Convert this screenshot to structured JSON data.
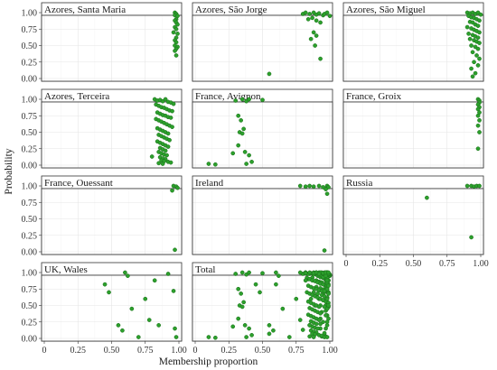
{
  "chart_data": {
    "type": "scatter",
    "xlabel": "Membership proportion",
    "ylabel": "Probability",
    "xlim": [
      0,
      1
    ],
    "ylim": [
      0,
      1
    ],
    "x_ticks": [
      "0",
      "0.25",
      "0.50",
      "0.75",
      "1.00"
    ],
    "y_ticks": [
      "0.00",
      "0.25",
      "0.50",
      "0.75",
      "1.00"
    ],
    "grid": true,
    "point_color": "#2ca02c",
    "point_edge_color": "#1a6b1a",
    "panels": [
      {
        "title": "Azores, Santa Maria",
        "x": [
          0.97,
          0.98,
          0.97,
          0.99,
          0.98,
          0.97,
          0.98,
          0.99,
          0.97,
          0.98,
          0.96,
          0.99,
          0.98,
          0.97,
          0.98,
          0.97,
          0.99,
          0.98,
          0.97,
          0.98
        ],
        "y": [
          1.0,
          0.98,
          0.96,
          0.95,
          0.9,
          0.88,
          0.85,
          0.82,
          0.78,
          0.75,
          0.7,
          0.68,
          0.62,
          0.58,
          0.55,
          0.5,
          0.48,
          0.45,
          0.42,
          0.35
        ]
      },
      {
        "title": "Azores, São Jorge",
        "x": [
          0.8,
          0.82,
          0.85,
          0.88,
          0.9,
          0.92,
          0.95,
          0.96,
          0.98,
          1.0,
          0.84,
          0.87,
          0.9,
          0.93,
          0.88,
          0.9,
          0.86,
          0.89,
          0.93,
          0.55
        ],
        "y": [
          0.98,
          1.0,
          0.98,
          1.0,
          0.97,
          0.99,
          0.96,
          0.98,
          1.0,
          0.95,
          0.9,
          0.92,
          0.88,
          0.85,
          0.7,
          0.65,
          0.6,
          0.5,
          0.3,
          0.07
        ]
      },
      {
        "title": "Azores, São Miguel",
        "x": [
          0.9,
          0.92,
          0.94,
          0.96,
          0.98,
          1.0,
          0.91,
          0.93,
          0.95,
          0.97,
          0.99,
          0.92,
          0.94,
          0.96,
          0.98,
          0.9,
          0.93,
          0.95,
          0.97,
          0.99,
          0.91,
          0.94,
          0.96,
          0.98,
          0.92,
          0.95,
          0.97,
          0.99,
          0.93,
          0.96,
          0.98,
          0.94,
          0.97,
          0.99,
          0.95,
          0.98,
          0.93,
          0.96,
          0.94
        ],
        "y": [
          1.0,
          0.99,
          1.0,
          0.98,
          1.0,
          0.97,
          0.95,
          0.93,
          0.92,
          0.9,
          0.88,
          0.86,
          0.85,
          0.82,
          0.8,
          0.78,
          0.76,
          0.74,
          0.72,
          0.7,
          0.68,
          0.66,
          0.64,
          0.62,
          0.6,
          0.58,
          0.56,
          0.54,
          0.5,
          0.48,
          0.45,
          0.4,
          0.35,
          0.3,
          0.25,
          0.2,
          0.15,
          0.08,
          0.03
        ]
      },
      {
        "title": "Azores, Terceira",
        "x": [
          0.82,
          0.84,
          0.86,
          0.88,
          0.9,
          0.92,
          0.94,
          0.96,
          0.83,
          0.85,
          0.87,
          0.89,
          0.91,
          0.93,
          0.95,
          0.84,
          0.86,
          0.88,
          0.9,
          0.92,
          0.94,
          0.83,
          0.85,
          0.87,
          0.89,
          0.91,
          0.93,
          0.95,
          0.84,
          0.86,
          0.88,
          0.9,
          0.92,
          0.85,
          0.87,
          0.89,
          0.91,
          0.93,
          0.84,
          0.86,
          0.88,
          0.9,
          0.92,
          0.86,
          0.88,
          0.9,
          0.85,
          0.87,
          0.89,
          0.91,
          0.8,
          0.86,
          0.88,
          0.9,
          0.87,
          0.89,
          0.92,
          0.94,
          0.85,
          0.88
        ],
        "y": [
          1.0,
          0.98,
          0.99,
          0.97,
          1.0,
          0.96,
          0.95,
          0.93,
          0.92,
          0.9,
          0.88,
          0.87,
          0.85,
          0.83,
          0.82,
          0.8,
          0.78,
          0.76,
          0.75,
          0.73,
          0.72,
          0.7,
          0.68,
          0.66,
          0.64,
          0.62,
          0.6,
          0.58,
          0.56,
          0.54,
          0.52,
          0.5,
          0.48,
          0.46,
          0.44,
          0.42,
          0.4,
          0.38,
          0.36,
          0.34,
          0.32,
          0.3,
          0.28,
          0.26,
          0.24,
          0.22,
          0.2,
          0.18,
          0.16,
          0.15,
          0.13,
          0.12,
          0.1,
          0.09,
          0.07,
          0.06,
          0.05,
          0.04,
          0.03,
          0.02
        ]
      },
      {
        "title": "France, Avignon",
        "x": [
          0.3,
          0.35,
          0.38,
          0.4,
          0.5,
          0.32,
          0.34,
          0.36,
          0.33,
          0.35,
          0.32,
          0.37,
          0.1,
          0.15,
          0.28,
          0.4,
          0.42,
          0.38
        ],
        "y": [
          0.98,
          1.0,
          0.97,
          1.0,
          0.99,
          0.75,
          0.68,
          0.55,
          0.5,
          0.48,
          0.3,
          0.2,
          0.02,
          0.01,
          0.18,
          0.15,
          0.05,
          0.02
        ]
      },
      {
        "title": "France, Groix",
        "x": [
          0.98,
          0.99,
          0.99,
          0.98,
          0.99,
          0.98,
          0.99,
          0.98,
          0.99,
          0.98,
          0.99,
          0.98
        ],
        "y": [
          1.0,
          0.98,
          0.95,
          0.92,
          0.88,
          0.85,
          0.8,
          0.75,
          0.68,
          0.6,
          0.5,
          0.25
        ]
      },
      {
        "title": "France, Ouessant",
        "x": [
          0.96,
          0.98,
          0.99,
          0.95,
          0.97
        ],
        "y": [
          1.0,
          0.99,
          0.97,
          0.93,
          0.03
        ]
      },
      {
        "title": "Ireland",
        "x": [
          0.78,
          0.82,
          0.85,
          0.88,
          0.92,
          0.95,
          0.98,
          0.99,
          0.97,
          0.98,
          0.96
        ],
        "y": [
          1.0,
          0.99,
          1.0,
          0.99,
          1.0,
          0.98,
          1.0,
          0.98,
          0.95,
          0.88,
          0.02
        ]
      },
      {
        "title": "Russia",
        "x": [
          0.6,
          0.9,
          0.93,
          0.95,
          0.97,
          0.99,
          0.93
        ],
        "y": [
          0.82,
          1.0,
          1.0,
          0.99,
          1.0,
          1.0,
          0.22
        ]
      },
      {
        "title": "UK, Wales",
        "x": [
          0.45,
          0.48,
          0.55,
          0.58,
          0.6,
          0.62,
          0.65,
          0.7,
          0.75,
          0.78,
          0.82,
          0.85,
          0.92,
          0.96,
          0.97,
          0.98
        ],
        "y": [
          0.82,
          0.7,
          0.2,
          0.12,
          1.0,
          0.95,
          0.45,
          0.02,
          0.6,
          0.28,
          0.88,
          0.2,
          0.98,
          0.72,
          0.15,
          0.02
        ]
      },
      {
        "title": "Total",
        "x": [],
        "y": []
      }
    ]
  }
}
